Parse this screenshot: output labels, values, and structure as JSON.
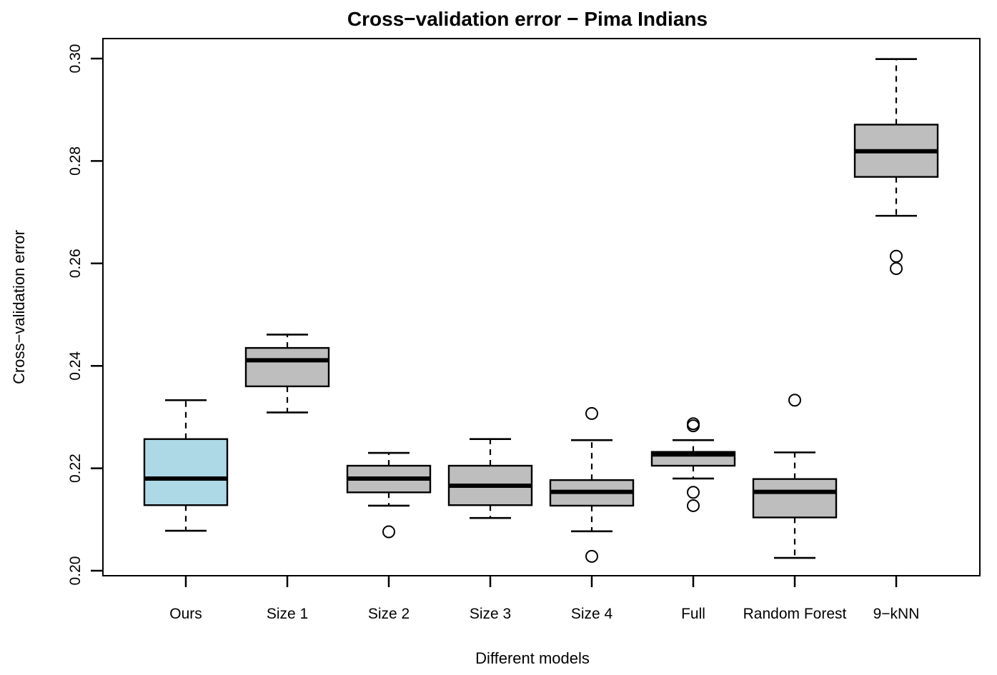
{
  "chart_data": {
    "type": "boxplot",
    "title": "Cross−validation error − Pima Indians",
    "xlabel": "Different models",
    "ylabel": "Cross−validation error",
    "ylim": [
      0.199,
      0.304
    ],
    "yticks": [
      0.2,
      0.22,
      0.24,
      0.26,
      0.28,
      0.3
    ],
    "ytick_labels": [
      "0.20",
      "0.22",
      "0.24",
      "0.26",
      "0.28",
      "0.30"
    ],
    "grid": false,
    "legend": "none",
    "categories": [
      "Ours",
      "Size 1",
      "Size 2",
      "Size 3",
      "Size 4",
      "Full",
      "Random Forest",
      "9−kNN"
    ],
    "boxes": [
      {
        "label": "Ours",
        "whisker_low": 0.2078,
        "q1": 0.2128,
        "median": 0.218,
        "q3": 0.2257,
        "whisker_high": 0.2333,
        "outliers": [],
        "fill": "#ADD8E6"
      },
      {
        "label": "Size 1",
        "whisker_low": 0.2309,
        "q1": 0.236,
        "median": 0.2411,
        "q3": 0.2435,
        "whisker_high": 0.2461,
        "outliers": [],
        "fill": "#BEBEBE"
      },
      {
        "label": "Size 2",
        "whisker_low": 0.2127,
        "q1": 0.2153,
        "median": 0.218,
        "q3": 0.2205,
        "whisker_high": 0.223,
        "outliers": [
          0.2076
        ],
        "fill": "#BEBEBE"
      },
      {
        "label": "Size 3",
        "whisker_low": 0.2103,
        "q1": 0.2128,
        "median": 0.2166,
        "q3": 0.2205,
        "whisker_high": 0.2257,
        "outliers": [],
        "fill": "#BEBEBE"
      },
      {
        "label": "Size 4",
        "whisker_low": 0.2077,
        "q1": 0.2127,
        "median": 0.2154,
        "q3": 0.2177,
        "whisker_high": 0.2255,
        "outliers": [
          0.2307,
          0.2028
        ],
        "fill": "#BEBEBE"
      },
      {
        "label": "Full",
        "whisker_low": 0.218,
        "q1": 0.2205,
        "median": 0.2227,
        "q3": 0.2232,
        "whisker_high": 0.2255,
        "outliers": [
          0.2287,
          0.2283,
          0.2153,
          0.2127
        ],
        "fill": "#BEBEBE"
      },
      {
        "label": "Random Forest",
        "whisker_low": 0.2025,
        "q1": 0.2104,
        "median": 0.2154,
        "q3": 0.2179,
        "whisker_high": 0.2231,
        "outliers": [
          0.2333
        ],
        "fill": "#BEBEBE"
      },
      {
        "label": "9−kNN",
        "whisker_low": 0.2693,
        "q1": 0.2769,
        "median": 0.2819,
        "q3": 0.2871,
        "whisker_high": 0.2999,
        "outliers": [
          0.2614,
          0.259
        ],
        "fill": "#BEBEBE"
      }
    ],
    "colors": {
      "highlight_fill": "#ADD8E6",
      "default_fill": "#BEBEBE",
      "stroke": "#000000",
      "background": "#FFFFFF"
    }
  }
}
